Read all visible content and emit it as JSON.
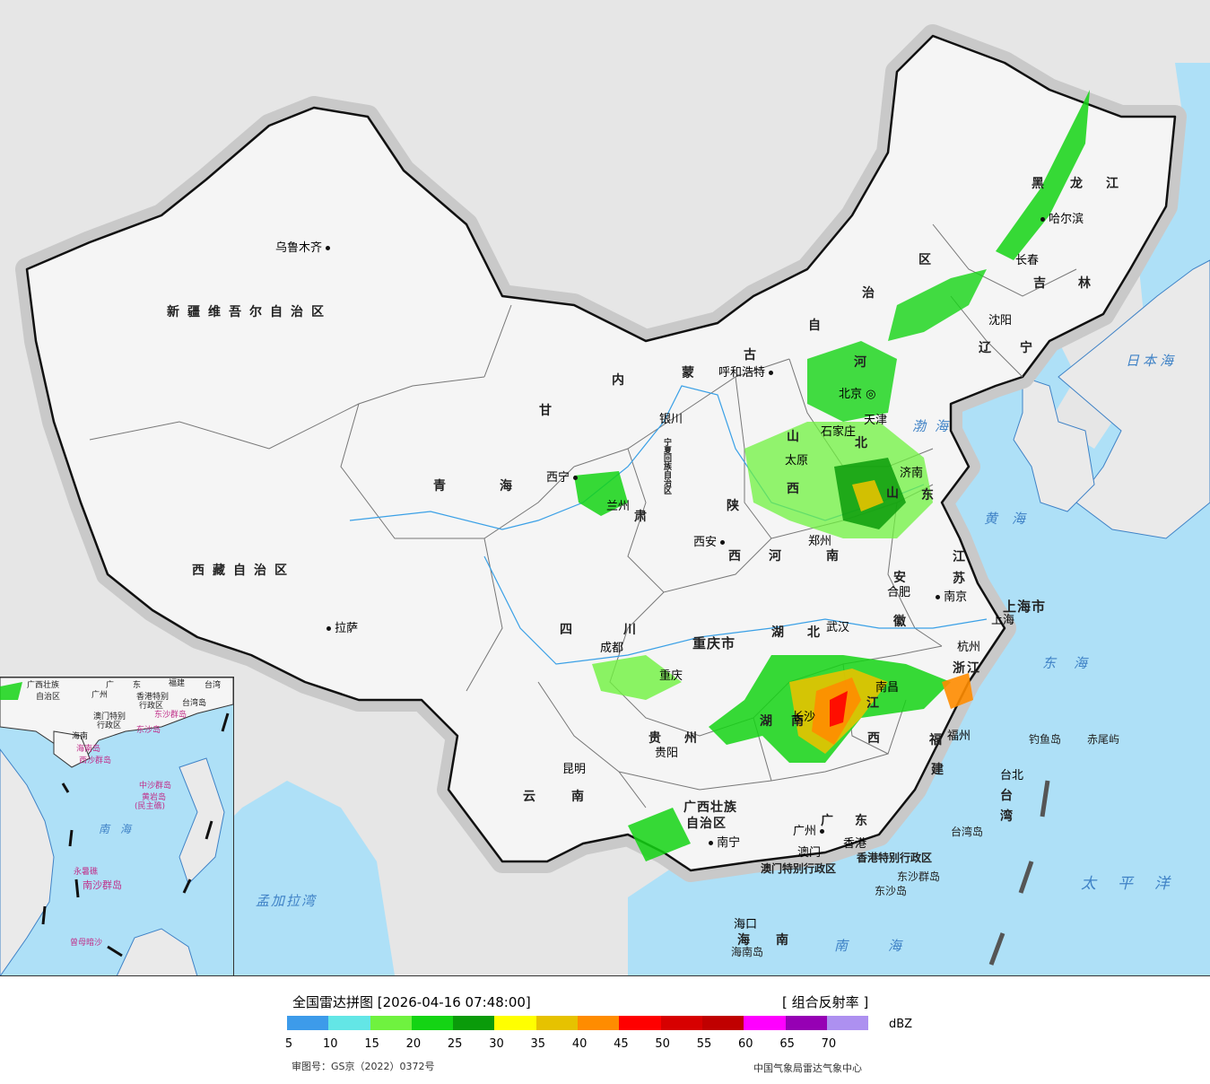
{
  "map": {
    "cities": [
      {
        "name": "乌鲁木齐",
        "key": "urumqi"
      },
      {
        "name": "拉萨",
        "key": "lhasa"
      },
      {
        "name": "西宁",
        "key": "xining"
      },
      {
        "name": "兰州",
        "key": "lanzhou"
      },
      {
        "name": "银川",
        "key": "yinchuan"
      },
      {
        "name": "呼和浩特",
        "key": "hohhot"
      },
      {
        "name": "北京",
        "key": "beijing"
      },
      {
        "name": "天津",
        "key": "tianjin"
      },
      {
        "name": "石家庄",
        "key": "shijiazhuang"
      },
      {
        "name": "太原",
        "key": "taiyuan"
      },
      {
        "name": "济南",
        "key": "jinan"
      },
      {
        "name": "郑州",
        "key": "zhengzhou"
      },
      {
        "name": "西安",
        "key": "xian"
      },
      {
        "name": "成都",
        "key": "chengdu"
      },
      {
        "name": "重庆",
        "key": "chongqing"
      },
      {
        "name": "武汉",
        "key": "wuhan"
      },
      {
        "name": "合肥",
        "key": "hefei"
      },
      {
        "name": "南京",
        "key": "nanjing"
      },
      {
        "name": "上海",
        "key": "shanghai"
      },
      {
        "name": "杭州",
        "key": "hangzhou"
      },
      {
        "name": "南昌",
        "key": "nanchang"
      },
      {
        "name": "长沙",
        "key": "changsha"
      },
      {
        "name": "贵阳",
        "key": "guiyang"
      },
      {
        "name": "昆明",
        "key": "kunming"
      },
      {
        "name": "南宁",
        "key": "nanning"
      },
      {
        "name": "广州",
        "key": "guangzhou"
      },
      {
        "name": "香港",
        "key": "hongkong"
      },
      {
        "name": "澳门",
        "key": "macau"
      },
      {
        "name": "福州",
        "key": "fuzhou"
      },
      {
        "name": "台北",
        "key": "taipei"
      },
      {
        "name": "海口",
        "key": "haikou"
      },
      {
        "name": "沈阳",
        "key": "shenyang"
      },
      {
        "name": "长春",
        "key": "changchun"
      },
      {
        "name": "哈尔滨",
        "key": "harbin"
      }
    ],
    "provinces": {
      "xinjiang": "新疆维吾尔自治区",
      "xizang": "西藏自治区",
      "qinghai": "青海",
      "gansu": "甘",
      "gansu2": "肃",
      "neimenggu": "内",
      "neimenggu2": "蒙",
      "neimenggu3": "古",
      "neimenggu4": "自",
      "neimenggu5": "治",
      "neimenggu6": "区",
      "ningxia": "宁夏回族自治区",
      "shaanxi": "陕",
      "shaanxi2": "西",
      "shanxi": "山",
      "shanxi2": "西",
      "hebei": "河",
      "hebei2": "北",
      "shandong": "山",
      "shandong2": "东",
      "henan": "河",
      "henan2": "南",
      "sichuan": "四",
      "sichuan2": "川",
      "chongqing": "重庆市",
      "hubei": "湖",
      "hubei2": "北",
      "hunan": "湖",
      "hunan2": "南",
      "anhui": "安",
      "anhui2": "徽",
      "jiangsu": "江",
      "jiangsu2": "苏",
      "shanghai": "上海市",
      "zhejiang": "浙江",
      "jiangxi": "江",
      "jiangxi2": "西",
      "fujian": "福",
      "fujian2": "建",
      "guizhou": "贵",
      "guizhou2": "州",
      "yunnan": "云",
      "yunnan2": "南",
      "guangxi": "广西壮族",
      "guangxi2": "自治区",
      "guangdong": "广东",
      "hainan": "海",
      "hainan2": "南",
      "taiwan": "台",
      "taiwan2": "湾",
      "heilongjiang": "黑",
      "heilongjiang2": "龙",
      "heilongjiang3": "江",
      "jilin": "吉林",
      "liaoning": "辽",
      "liaoning2": "宁",
      "hk_sar": "香港特别行政区",
      "mo_sar": "澳门特别行政区"
    },
    "seas": {
      "bohai": "渤海",
      "huanghai": "黄海",
      "donghai": "东海",
      "nanhai": "南海",
      "japan": "日本海",
      "pacific": "太平洋",
      "bengal": "孟加拉湾"
    },
    "islands": {
      "diaoyu": "钓鱼岛",
      "chiwei": "赤尾屿",
      "taiwan_island": "台湾岛",
      "dongsha_qundao": "东沙群岛",
      "dongsha_dao": "东沙岛",
      "hainan_island": "海南岛"
    },
    "inset": {
      "labels": {
        "guangxi": "广西壮族",
        "guangxi2": "自治区",
        "guangdong": "广",
        "guangdong2": "东",
        "guangzhou": "广州",
        "fujian": "福建",
        "taiwan": "台湾",
        "taiwan_island": "台湾岛",
        "hk": "香港特别",
        "hk2": "行政区",
        "macau": "澳门特别",
        "macau2": "行政区",
        "dongsha": "东沙群岛",
        "dongsha2": "东沙岛",
        "hainan": "海南",
        "hainan_island": "海南岛",
        "xisha": "西沙群岛",
        "zhongsha": "中沙群岛",
        "huangyan": "黄岩岛",
        "huangyan2": "(民主礁)",
        "nanhai": "南海",
        "nansha": "南沙群岛",
        "yongshu": "永暑礁",
        "zengmu": "曾母暗沙"
      }
    }
  },
  "legend": {
    "title": "全国雷达拼图 [2026-04-16 07:48:00]",
    "product": "[ 组合反射率 ]",
    "unit": "dBZ",
    "colors": [
      "#3d9bea",
      "#63e6e6",
      "#6ff23f",
      "#14d414",
      "#0a9b0a",
      "#ffff00",
      "#e6c200",
      "#ff8c00",
      "#ff0000",
      "#d70000",
      "#c00000",
      "#ff00ff",
      "#9600b4",
      "#ad90f0"
    ],
    "ticks": [
      "5",
      "10",
      "15",
      "20",
      "25",
      "30",
      "35",
      "40",
      "45",
      "50",
      "55",
      "60",
      "65",
      "70"
    ],
    "approval": "审图号：GS京（2022）0372号",
    "credit": "中国气象局雷达气象中心"
  }
}
